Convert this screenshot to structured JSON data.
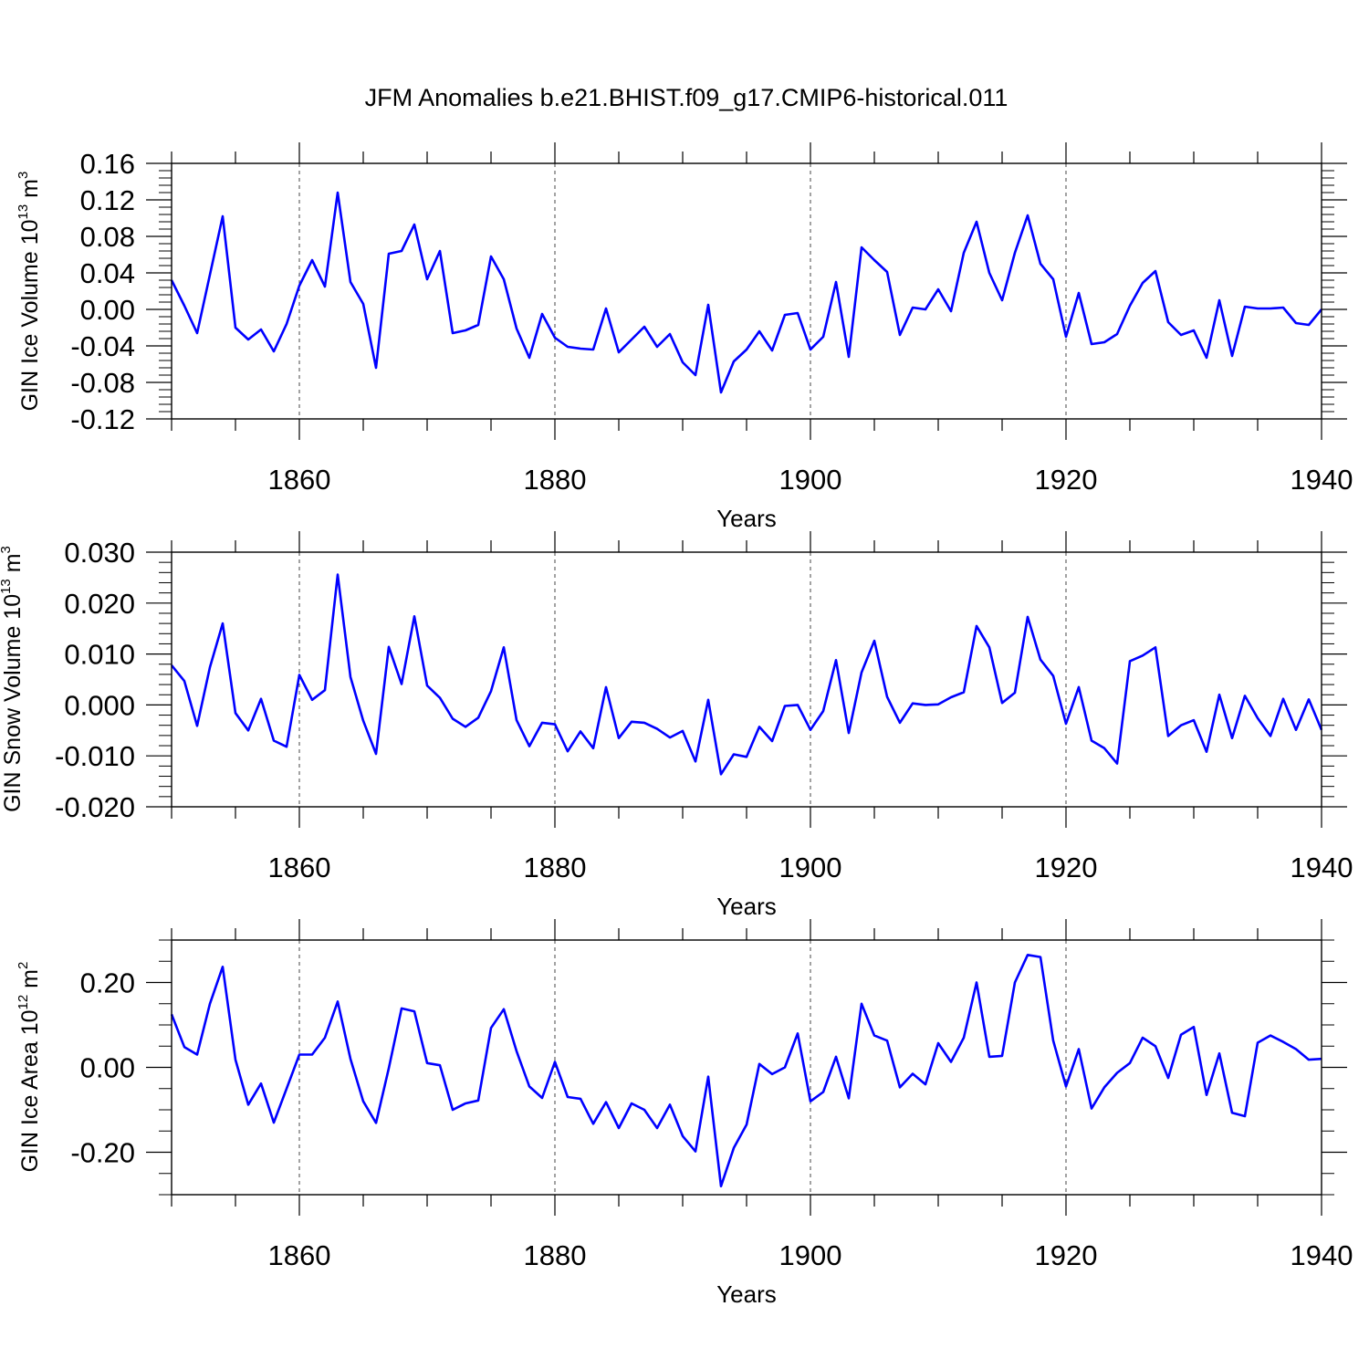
{
  "title": "JFM Anomalies b.e21.BHIST.f09_g17.CMIP6-historical.011",
  "colors": {
    "line": "#0000ff",
    "axis": "#000000",
    "grid": "#444444",
    "background": "#ffffff"
  },
  "chart_data": [
    {
      "type": "line",
      "ylabel_main": "GIN Ice Volume 10",
      "ylabel_exp": "13",
      "ylabel_unit": " m",
      "ylabel_unit_exp": "3",
      "xlabel": "Years",
      "xlim": [
        1850,
        1940
      ],
      "ylim": [
        -0.12,
        0.16
      ],
      "xticks": [
        1860,
        1880,
        1900,
        1920,
        1940
      ],
      "xtick_labels": [
        "1860",
        "1880",
        "1900",
        "1920",
        "1940"
      ],
      "yticks": [
        -0.12,
        -0.08,
        -0.04,
        0.0,
        0.04,
        0.08,
        0.12,
        0.16
      ],
      "ytick_labels": [
        "-0.12",
        "-0.08",
        "-0.04",
        "0.00",
        "0.04",
        "0.08",
        "0.12",
        "0.16"
      ],
      "y_minor_step": 0.008,
      "x": [
        1850,
        1851,
        1852,
        1853,
        1854,
        1855,
        1856,
        1857,
        1858,
        1859,
        1860,
        1861,
        1862,
        1863,
        1864,
        1865,
        1866,
        1867,
        1868,
        1869,
        1870,
        1871,
        1872,
        1873,
        1874,
        1875,
        1876,
        1877,
        1878,
        1879,
        1880,
        1881,
        1882,
        1883,
        1884,
        1885,
        1886,
        1887,
        1888,
        1889,
        1890,
        1891,
        1892,
        1893,
        1894,
        1895,
        1896,
        1897,
        1898,
        1899,
        1900,
        1901,
        1902,
        1903,
        1904,
        1905,
        1906,
        1907,
        1908,
        1909,
        1910,
        1911,
        1912,
        1913,
        1914,
        1915,
        1916,
        1917,
        1918,
        1919,
        1920,
        1921,
        1922,
        1923,
        1924,
        1925,
        1926,
        1927,
        1928,
        1929,
        1930,
        1931,
        1932,
        1933,
        1934,
        1935,
        1936,
        1937,
        1938,
        1939,
        1940
      ],
      "values": [
        0.032,
        0.004,
        -0.026,
        0.038,
        0.102,
        -0.02,
        -0.033,
        -0.022,
        -0.046,
        -0.016,
        0.026,
        0.054,
        0.025,
        0.128,
        0.03,
        0.006,
        -0.064,
        0.061,
        0.064,
        0.093,
        0.033,
        0.064,
        -0.026,
        -0.023,
        -0.017,
        0.058,
        0.033,
        -0.021,
        -0.053,
        -0.005,
        -0.031,
        -0.041,
        -0.043,
        -0.044,
        0.001,
        -0.047,
        -0.033,
        -0.019,
        -0.041,
        -0.027,
        -0.058,
        -0.072,
        0.005,
        -0.091,
        -0.057,
        -0.044,
        -0.024,
        -0.045,
        -0.006,
        -0.004,
        -0.044,
        -0.03,
        0.03,
        -0.052,
        0.068,
        0.054,
        0.041,
        -0.028,
        0.002,
        0.0,
        0.022,
        -0.002,
        0.062,
        0.096,
        0.04,
        0.01,
        0.062,
        0.103,
        0.05,
        0.033,
        -0.03,
        0.018,
        -0.038,
        -0.036,
        -0.027,
        0.004,
        0.029,
        0.042,
        -0.014,
        -0.028,
        -0.023,
        -0.053,
        0.01,
        -0.051,
        0.003,
        0.001,
        0.001,
        0.002,
        -0.015,
        -0.017,
        0.0
      ]
    },
    {
      "type": "line",
      "ylabel_main": "GIN Snow Volume 10",
      "ylabel_exp": "13",
      "ylabel_unit": " m",
      "ylabel_unit_exp": "3",
      "xlabel": "Years",
      "xlim": [
        1850,
        1940
      ],
      "ylim": [
        -0.02,
        0.03
      ],
      "xticks": [
        1860,
        1880,
        1900,
        1920,
        1940
      ],
      "xtick_labels": [
        "1860",
        "1880",
        "1900",
        "1920",
        "1940"
      ],
      "yticks": [
        -0.02,
        -0.01,
        0.0,
        0.01,
        0.02,
        0.03
      ],
      "ytick_labels": [
        "-0.020",
        "-0.010",
        "0.000",
        "0.010",
        "0.020",
        "0.030"
      ],
      "y_minor_step": 0.002,
      "x": [
        1850,
        1851,
        1852,
        1853,
        1854,
        1855,
        1856,
        1857,
        1858,
        1859,
        1860,
        1861,
        1862,
        1863,
        1864,
        1865,
        1866,
        1867,
        1868,
        1869,
        1870,
        1871,
        1872,
        1873,
        1874,
        1875,
        1876,
        1877,
        1878,
        1879,
        1880,
        1881,
        1882,
        1883,
        1884,
        1885,
        1886,
        1887,
        1888,
        1889,
        1890,
        1891,
        1892,
        1893,
        1894,
        1895,
        1896,
        1897,
        1898,
        1899,
        1900,
        1901,
        1902,
        1903,
        1904,
        1905,
        1906,
        1907,
        1908,
        1909,
        1910,
        1911,
        1912,
        1913,
        1914,
        1915,
        1916,
        1917,
        1918,
        1919,
        1920,
        1921,
        1922,
        1923,
        1924,
        1925,
        1926,
        1927,
        1928,
        1929,
        1930,
        1931,
        1932,
        1933,
        1934,
        1935,
        1936,
        1937,
        1938,
        1939,
        1940
      ],
      "values": [
        0.0078,
        0.0047,
        -0.0041,
        0.0074,
        0.016,
        -0.0016,
        -0.005,
        0.0012,
        -0.007,
        -0.0082,
        0.0059,
        0.001,
        0.0029,
        0.0256,
        0.0055,
        -0.0031,
        -0.0096,
        0.0114,
        0.0041,
        0.0174,
        0.0038,
        0.0014,
        -0.0027,
        -0.0043,
        -0.0025,
        0.0027,
        0.0113,
        -0.003,
        -0.0081,
        -0.0035,
        -0.0038,
        -0.0091,
        -0.0052,
        -0.0085,
        0.0035,
        -0.0065,
        -0.0033,
        -0.0035,
        -0.0047,
        -0.0064,
        -0.0051,
        -0.0111,
        0.001,
        -0.0136,
        -0.0097,
        -0.0102,
        -0.0043,
        -0.0071,
        -0.0002,
        0.0,
        -0.0049,
        -0.0012,
        0.0088,
        -0.0055,
        0.0064,
        0.0126,
        0.0016,
        -0.0035,
        0.0003,
        0.0,
        0.0001,
        0.0015,
        0.0025,
        0.0155,
        0.0113,
        0.0004,
        0.0024,
        0.0173,
        0.0089,
        0.0057,
        -0.0037,
        0.0035,
        -0.007,
        -0.0085,
        -0.0115,
        0.0086,
        0.0097,
        0.0113,
        -0.0061,
        -0.004,
        -0.003,
        -0.0092,
        0.002,
        -0.0065,
        0.0018,
        -0.0026,
        -0.0061,
        0.0012,
        -0.0049,
        0.0011,
        -0.0049
      ]
    },
    {
      "type": "line",
      "ylabel_main": "GIN Ice Area 10",
      "ylabel_exp": "12",
      "ylabel_unit": " m",
      "ylabel_unit_exp": "2",
      "xlabel": "Years",
      "xlim": [
        1850,
        1940
      ],
      "ylim": [
        -0.3,
        0.3
      ],
      "xticks": [
        1860,
        1880,
        1900,
        1920,
        1940
      ],
      "xtick_labels": [
        "1860",
        "1880",
        "1900",
        "1920",
        "1940"
      ],
      "yticks": [
        -0.2,
        0.0,
        0.2
      ],
      "ytick_labels": [
        "-0.20",
        "0.00",
        "0.20"
      ],
      "y_minor_step": 0.05,
      "x": [
        1850,
        1851,
        1852,
        1853,
        1854,
        1855,
        1856,
        1857,
        1858,
        1859,
        1860,
        1861,
        1862,
        1863,
        1864,
        1865,
        1866,
        1867,
        1868,
        1869,
        1870,
        1871,
        1872,
        1873,
        1874,
        1875,
        1876,
        1877,
        1878,
        1879,
        1880,
        1881,
        1882,
        1883,
        1884,
        1885,
        1886,
        1887,
        1888,
        1889,
        1890,
        1891,
        1892,
        1893,
        1894,
        1895,
        1896,
        1897,
        1898,
        1899,
        1900,
        1901,
        1902,
        1903,
        1904,
        1905,
        1906,
        1907,
        1908,
        1909,
        1910,
        1911,
        1912,
        1913,
        1914,
        1915,
        1916,
        1917,
        1918,
        1919,
        1920,
        1921,
        1922,
        1923,
        1924,
        1925,
        1926,
        1927,
        1928,
        1929,
        1930,
        1931,
        1932,
        1933,
        1934,
        1935,
        1936,
        1937,
        1938,
        1939,
        1940
      ],
      "values": [
        0.125,
        0.048,
        0.03,
        0.15,
        0.237,
        0.018,
        -0.088,
        -0.038,
        -0.13,
        -0.05,
        0.03,
        0.03,
        0.07,
        0.155,
        0.02,
        -0.08,
        -0.131,
        -0.002,
        0.139,
        0.132,
        0.01,
        0.005,
        -0.1,
        -0.085,
        -0.078,
        0.093,
        0.137,
        0.038,
        -0.045,
        -0.072,
        0.013,
        -0.07,
        -0.074,
        -0.133,
        -0.082,
        -0.143,
        -0.085,
        -0.1,
        -0.143,
        -0.088,
        -0.162,
        -0.198,
        -0.022,
        -0.28,
        -0.19,
        -0.135,
        0.008,
        -0.016,
        0.0,
        0.08,
        -0.08,
        -0.058,
        0.025,
        -0.073,
        0.15,
        0.075,
        0.063,
        -0.047,
        -0.015,
        -0.04,
        0.057,
        0.013,
        0.07,
        0.2,
        0.025,
        0.027,
        0.2,
        0.265,
        0.26,
        0.063,
        -0.045,
        0.043,
        -0.097,
        -0.047,
        -0.013,
        0.01,
        0.07,
        0.05,
        -0.025,
        0.077,
        0.095,
        -0.065,
        0.033,
        -0.107,
        -0.115,
        0.058,
        0.075,
        0.06,
        0.043,
        0.018,
        0.02
      ]
    }
  ]
}
